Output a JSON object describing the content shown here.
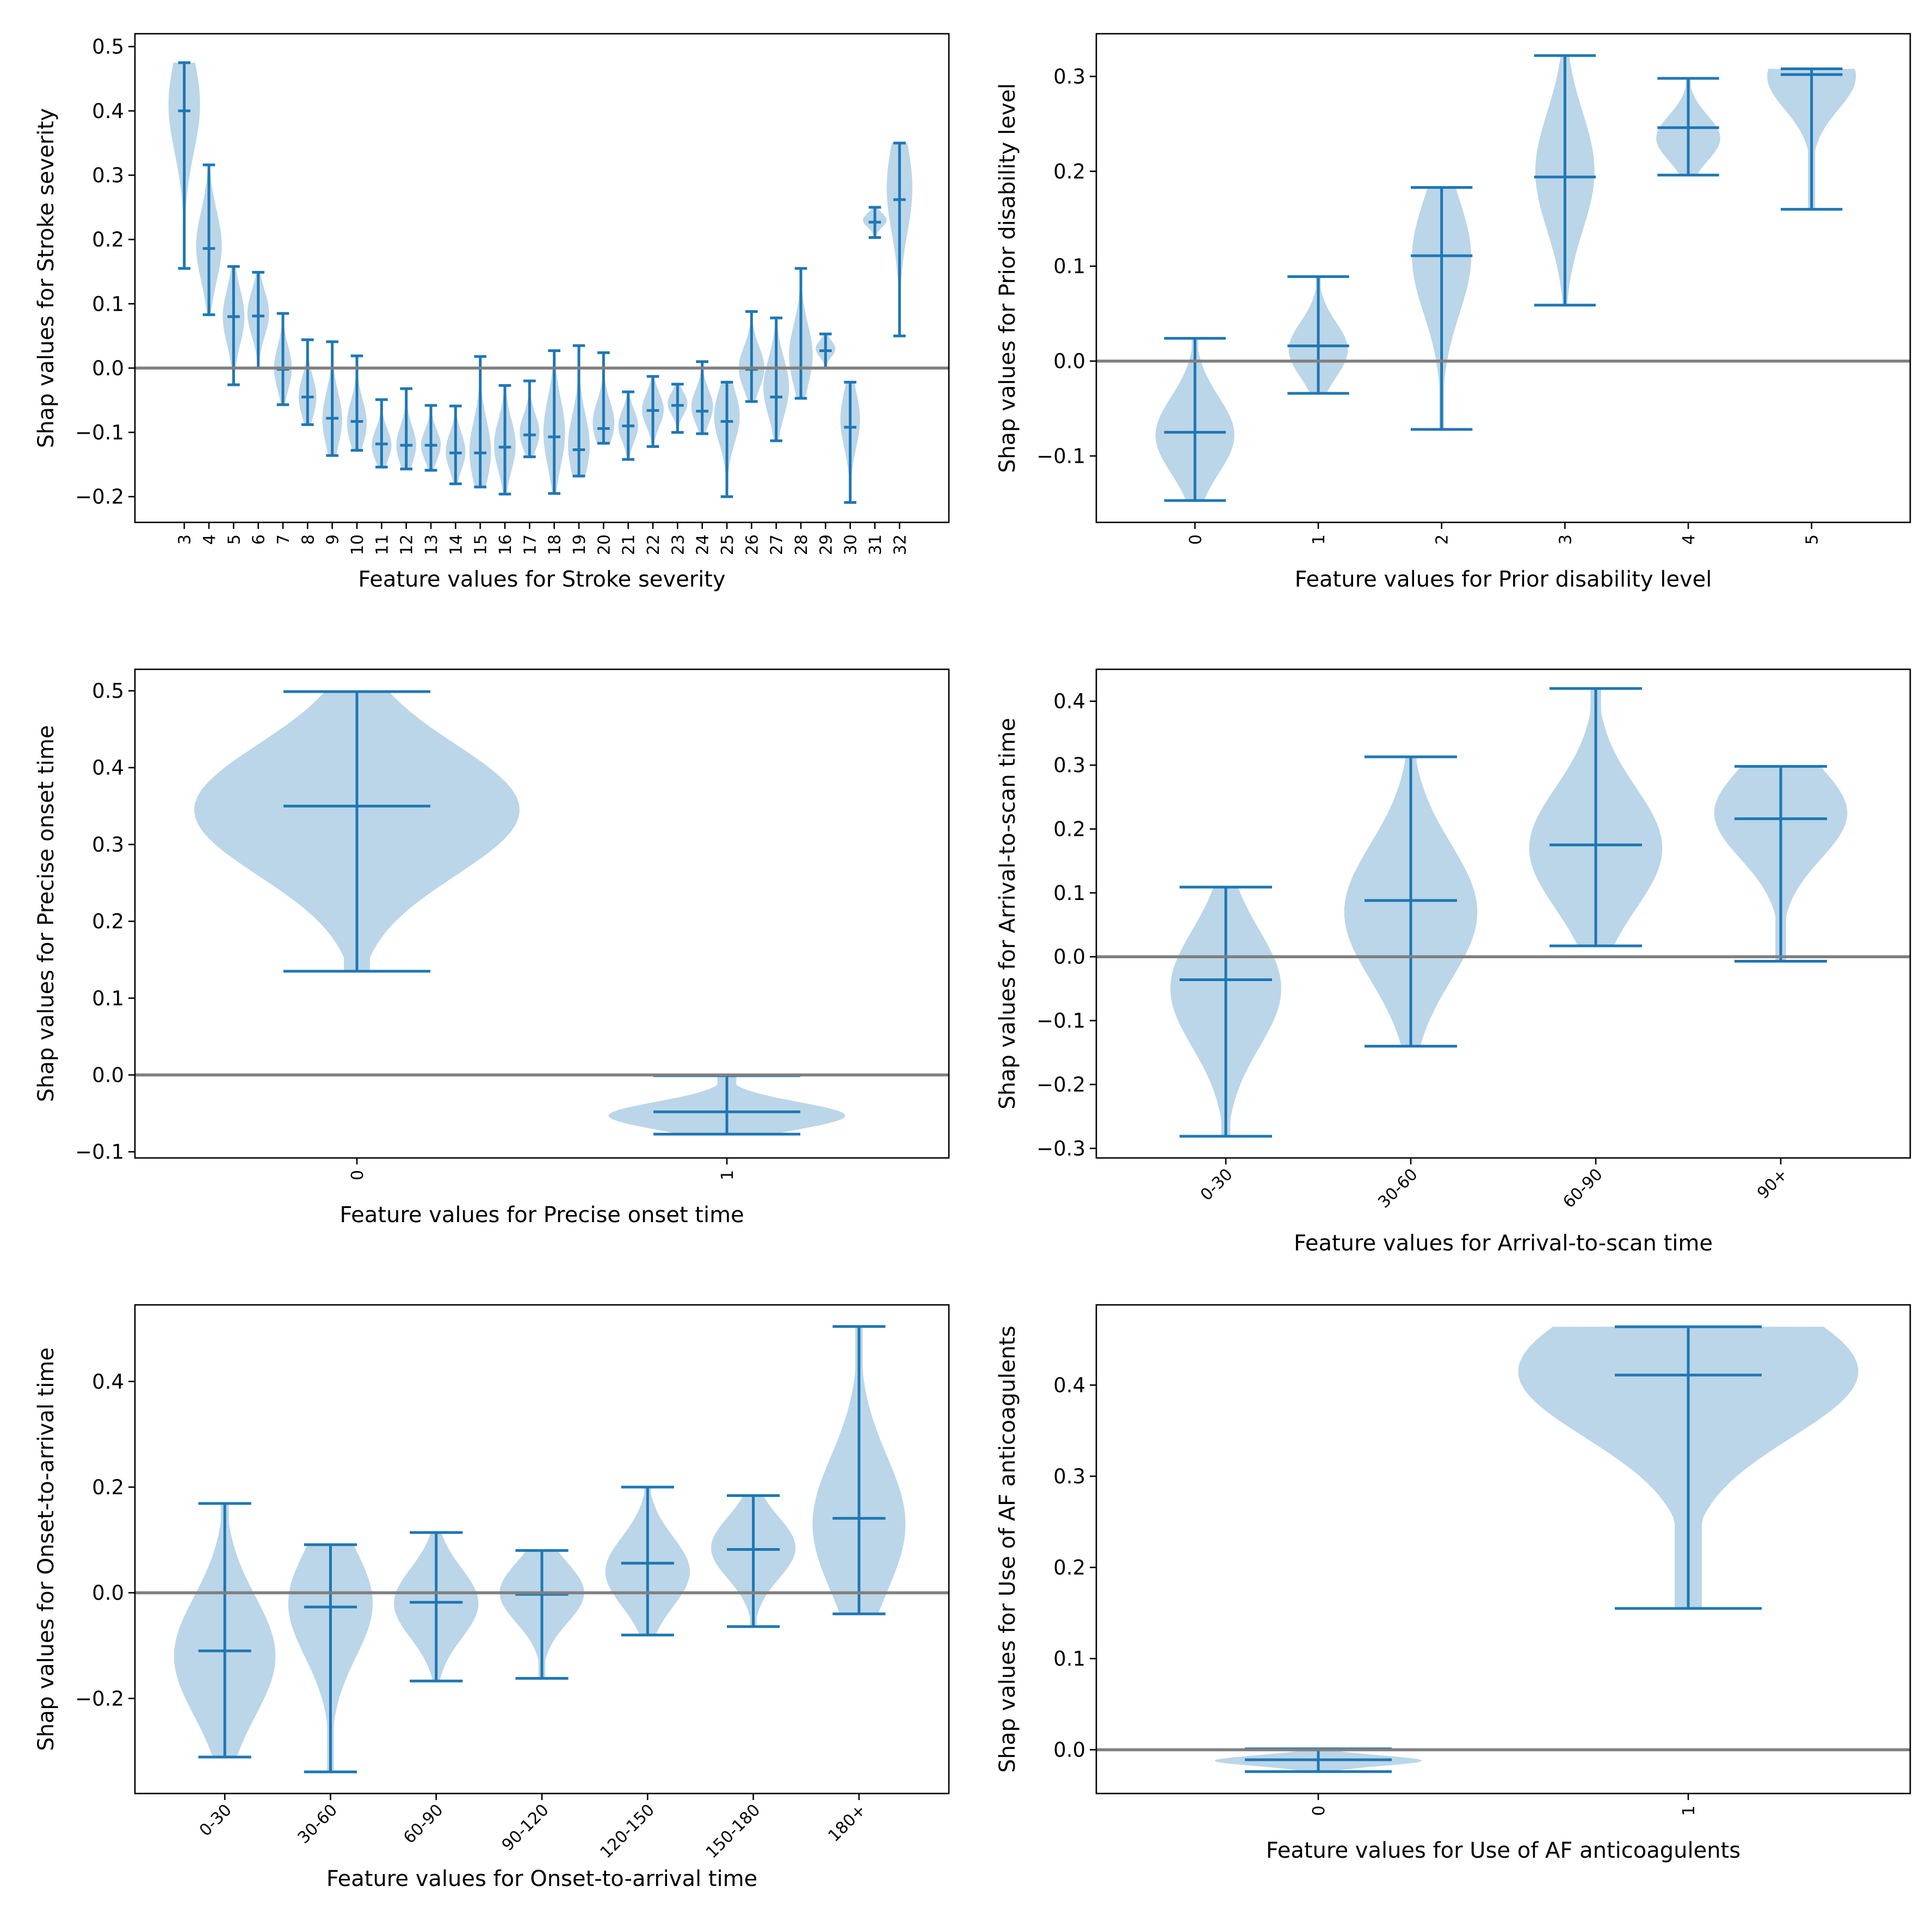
{
  "style": {
    "body_color": "#1f77b4",
    "body_opacity": 0.3,
    "line_color": "#1f77b4",
    "zero_line_color": "#808080"
  },
  "chart_data": [
    {
      "type": "violin",
      "xlabel": "Feature values for Stroke severity",
      "ylabel": "Shap values for Stroke severity",
      "ylim": [
        -0.24,
        0.52
      ],
      "yticks": [
        -0.2,
        -0.1,
        0.0,
        0.1,
        0.2,
        0.3,
        0.4,
        0.5
      ],
      "ytick_labels": [
        "−0.2",
        "−0.1",
        "0.0",
        "0.1",
        "0.2",
        "0.3",
        "0.4",
        "0.5"
      ],
      "xtick_rotation": 90,
      "zero_line": true,
      "categories": [
        "3",
        "4",
        "5",
        "6",
        "7",
        "8",
        "9",
        "10",
        "11",
        "12",
        "13",
        "14",
        "15",
        "16",
        "17",
        "18",
        "19",
        "20",
        "21",
        "22",
        "23",
        "24",
        "25",
        "26",
        "27",
        "28",
        "29",
        "30",
        "31",
        "32"
      ],
      "violins": [
        {
          "min": 0.155,
          "max": 0.475,
          "median": 0.4,
          "peak": 0.41,
          "spread": 0.32
        },
        {
          "min": 0.083,
          "max": 0.316,
          "median": 0.186,
          "peak": 0.19,
          "spread": 0.26
        },
        {
          "min": -0.026,
          "max": 0.158,
          "median": 0.08,
          "peak": 0.08,
          "spread": 0.22
        },
        {
          "min": 0.0,
          "max": 0.149,
          "median": 0.081,
          "peak": 0.085,
          "spread": 0.22
        },
        {
          "min": -0.057,
          "max": 0.085,
          "median": -0.002,
          "peak": 0.0,
          "spread": 0.18
        },
        {
          "min": -0.088,
          "max": 0.044,
          "median": -0.045,
          "peak": -0.045,
          "spread": 0.18
        },
        {
          "min": -0.136,
          "max": 0.041,
          "median": -0.078,
          "peak": -0.08,
          "spread": 0.2
        },
        {
          "min": -0.128,
          "max": 0.019,
          "median": -0.083,
          "peak": -0.085,
          "spread": 0.2
        },
        {
          "min": -0.154,
          "max": -0.049,
          "median": -0.118,
          "peak": -0.12,
          "spread": 0.2
        },
        {
          "min": -0.157,
          "max": -0.032,
          "median": -0.12,
          "peak": -0.12,
          "spread": 0.2
        },
        {
          "min": -0.159,
          "max": -0.058,
          "median": -0.12,
          "peak": -0.12,
          "spread": 0.2
        },
        {
          "min": -0.18,
          "max": -0.059,
          "median": -0.132,
          "peak": -0.13,
          "spread": 0.2
        },
        {
          "min": -0.185,
          "max": 0.018,
          "median": -0.132,
          "peak": -0.13,
          "spread": 0.22
        },
        {
          "min": -0.196,
          "max": -0.027,
          "median": -0.123,
          "peak": -0.12,
          "spread": 0.22
        },
        {
          "min": -0.138,
          "max": -0.02,
          "median": -0.104,
          "peak": -0.1,
          "spread": 0.2
        },
        {
          "min": -0.195,
          "max": 0.027,
          "median": -0.107,
          "peak": -0.1,
          "spread": 0.22
        },
        {
          "min": -0.168,
          "max": 0.035,
          "median": -0.127,
          "peak": -0.12,
          "spread": 0.22
        },
        {
          "min": -0.117,
          "max": 0.024,
          "median": -0.094,
          "peak": -0.085,
          "spread": 0.22
        },
        {
          "min": -0.142,
          "max": -0.037,
          "median": -0.09,
          "peak": -0.09,
          "spread": 0.2
        },
        {
          "min": -0.122,
          "max": -0.013,
          "median": -0.066,
          "peak": -0.065,
          "spread": 0.22
        },
        {
          "min": -0.1,
          "max": -0.025,
          "median": -0.058,
          "peak": -0.055,
          "spread": 0.2
        },
        {
          "min": -0.102,
          "max": 0.01,
          "median": -0.067,
          "peak": -0.06,
          "spread": 0.22
        },
        {
          "min": -0.2,
          "max": -0.022,
          "median": -0.083,
          "peak": -0.075,
          "spread": 0.26
        },
        {
          "min": -0.052,
          "max": 0.088,
          "median": -0.002,
          "peak": 0.0,
          "spread": 0.26
        },
        {
          "min": -0.113,
          "max": 0.078,
          "median": -0.045,
          "peak": -0.03,
          "spread": 0.26
        },
        {
          "min": -0.047,
          "max": 0.155,
          "median": 0.0,
          "peak": 0.02,
          "spread": 0.24
        },
        {
          "min": 0.0,
          "max": 0.053,
          "median": 0.027,
          "peak": 0.03,
          "spread": 0.2
        },
        {
          "min": -0.209,
          "max": -0.022,
          "median": -0.092,
          "peak": -0.08,
          "spread": 0.2
        },
        {
          "min": 0.203,
          "max": 0.25,
          "median": 0.227,
          "peak": 0.23,
          "spread": 0.24
        },
        {
          "min": 0.05,
          "max": 0.35,
          "median": 0.262,
          "peak": 0.28,
          "spread": 0.26
        }
      ]
    },
    {
      "type": "violin",
      "xlabel": "Feature values for Prior disability level",
      "ylabel": "Shap values for Prior disability level",
      "ylim": [
        -0.17,
        0.345
      ],
      "yticks": [
        -0.1,
        0.0,
        0.1,
        0.2,
        0.3
      ],
      "ytick_labels": [
        "−0.1",
        "0.0",
        "0.1",
        "0.2",
        "0.3"
      ],
      "xtick_rotation": 90,
      "zero_line": true,
      "categories": [
        "0",
        "1",
        "2",
        "3",
        "4",
        "5"
      ],
      "violins": [
        {
          "min": -0.147,
          "max": 0.024,
          "median": -0.075,
          "peak": -0.078,
          "spread": 0.16
        },
        {
          "min": -0.034,
          "max": 0.089,
          "median": 0.016,
          "peak": 0.012,
          "spread": 0.12
        },
        {
          "min": -0.072,
          "max": 0.183,
          "median": 0.111,
          "peak": 0.11,
          "spread": 0.12
        },
        {
          "min": 0.059,
          "max": 0.322,
          "median": 0.194,
          "peak": 0.2,
          "spread": 0.12
        },
        {
          "min": 0.196,
          "max": 0.298,
          "median": 0.246,
          "peak": 0.235,
          "spread": 0.13
        },
        {
          "min": 0.16,
          "max": 0.308,
          "median": 0.302,
          "peak": 0.3,
          "spread": 0.18
        }
      ]
    },
    {
      "type": "violin",
      "xlabel": "Feature values for Precise onset time",
      "ylabel": "Shap values for Precise onset time",
      "ylim": [
        -0.108,
        0.528
      ],
      "yticks": [
        -0.1,
        0.0,
        0.1,
        0.2,
        0.3,
        0.4,
        0.5
      ],
      "ytick_labels": [
        "−0.1",
        "0.0",
        "0.1",
        "0.2",
        "0.3",
        "0.4",
        "0.5"
      ],
      "xtick_rotation": 90,
      "zero_line": true,
      "categories": [
        "0",
        "1"
      ],
      "violins": [
        {
          "min": 0.135,
          "max": 0.499,
          "median": 0.35,
          "peak": 0.345,
          "spread": 0.22
        },
        {
          "min": -0.077,
          "max": -0.001,
          "median": -0.048,
          "peak": -0.053,
          "spread": 0.16
        }
      ]
    },
    {
      "type": "violin",
      "xlabel": "Feature values for Arrival-to-scan time",
      "ylabel": "Shap values for Arrival-to-scan time",
      "ylim": [
        -0.315,
        0.45
      ],
      "yticks": [
        -0.3,
        -0.2,
        -0.1,
        0.0,
        0.1,
        0.2,
        0.3,
        0.4
      ],
      "ytick_labels": [
        "−0.3",
        "−0.2",
        "−0.1",
        "0.0",
        "0.1",
        "0.2",
        "0.3",
        "0.4"
      ],
      "xtick_rotation": 45,
      "zero_line": true,
      "categories": [
        "0-30",
        "30-60",
        "60-90",
        "90+"
      ],
      "violins": [
        {
          "min": -0.281,
          "max": 0.109,
          "median": -0.036,
          "peak": -0.05,
          "spread": 0.15
        },
        {
          "min": -0.14,
          "max": 0.313,
          "median": 0.088,
          "peak": 0.07,
          "spread": 0.18
        },
        {
          "min": 0.017,
          "max": 0.42,
          "median": 0.175,
          "peak": 0.17,
          "spread": 0.18
        },
        {
          "min": -0.007,
          "max": 0.298,
          "median": 0.216,
          "peak": 0.225,
          "spread": 0.18
        }
      ]
    },
    {
      "type": "violin",
      "xlabel": "Feature values for Onset-to-arrival time",
      "ylabel": "Shap values for Onset-to-arrival time",
      "ylim": [
        -0.38,
        0.545
      ],
      "yticks": [
        -0.2,
        0.0,
        0.2,
        0.4
      ],
      "ytick_labels": [
        "−0.2",
        "0.0",
        "0.2",
        "0.4"
      ],
      "xtick_rotation": 45,
      "zero_line": true,
      "categories": [
        "0-30",
        "30-60",
        "60-90",
        "90-120",
        "120-150",
        "150-180",
        "180+"
      ],
      "violins": [
        {
          "min": -0.311,
          "max": 0.169,
          "median": -0.11,
          "peak": -0.12,
          "spread": 0.24
        },
        {
          "min": -0.339,
          "max": 0.091,
          "median": -0.027,
          "peak": -0.02,
          "spread": 0.2
        },
        {
          "min": -0.167,
          "max": 0.114,
          "median": -0.018,
          "peak": -0.02,
          "spread": 0.2
        },
        {
          "min": -0.162,
          "max": 0.08,
          "median": -0.003,
          "peak": 0.0,
          "spread": 0.2
        },
        {
          "min": -0.08,
          "max": 0.2,
          "median": 0.056,
          "peak": 0.04,
          "spread": 0.2
        },
        {
          "min": -0.064,
          "max": 0.184,
          "median": 0.082,
          "peak": 0.085,
          "spread": 0.2
        },
        {
          "min": -0.04,
          "max": 0.504,
          "median": 0.141,
          "peak": 0.13,
          "spread": 0.22
        }
      ]
    },
    {
      "type": "violin",
      "xlabel": "Feature values for Use of AF anticoagulents",
      "ylabel": "Shap values for Use of AF anticoagulents",
      "ylim": [
        -0.048,
        0.488
      ],
      "yticks": [
        0.0,
        0.1,
        0.2,
        0.3,
        0.4
      ],
      "ytick_labels": [
        "0.0",
        "0.1",
        "0.2",
        "0.3",
        "0.4"
      ],
      "xtick_rotation": 90,
      "zero_line": true,
      "categories": [
        "0",
        "1"
      ],
      "violins": [
        {
          "min": -0.024,
          "max": 0.001,
          "median": -0.011,
          "peak": -0.012,
          "spread": 0.14
        },
        {
          "min": 0.155,
          "max": 0.464,
          "median": 0.411,
          "peak": 0.415,
          "spread": 0.23
        }
      ]
    }
  ]
}
